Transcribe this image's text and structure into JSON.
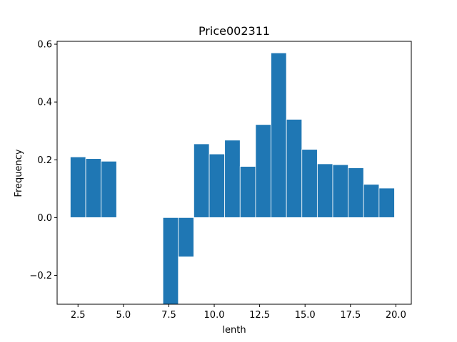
{
  "chart_data": {
    "type": "bar",
    "title": "Price002311",
    "xlabel": "lenth",
    "ylabel": "Frequency",
    "xlim": [
      1.35,
      20.85
    ],
    "ylim": [
      -0.3,
      0.61
    ],
    "bar_color": "#1f77b4",
    "bar_width": 0.85,
    "x": [
      2.5,
      3.35,
      4.2,
      7.6,
      8.45,
      9.3,
      10.15,
      11.0,
      11.85,
      12.7,
      13.55,
      14.4,
      15.25,
      16.1,
      16.95,
      17.8,
      18.65,
      19.5
    ],
    "values": [
      0.21,
      0.204,
      0.195,
      -0.3,
      -0.136,
      0.255,
      0.22,
      0.268,
      0.177,
      0.322,
      0.57,
      0.34,
      0.236,
      0.186,
      0.183,
      0.172,
      0.115,
      0.102
    ],
    "x_ticks": [
      2.5,
      5.0,
      7.5,
      10.0,
      12.5,
      15.0,
      17.5,
      20.0
    ],
    "x_tick_labels": [
      "2.5",
      "5.0",
      "7.5",
      "10.0",
      "12.5",
      "15.0",
      "17.5",
      "20.0"
    ],
    "y_ticks": [
      -0.2,
      0.0,
      0.2,
      0.4,
      0.6
    ],
    "y_tick_labels": [
      "−0.2",
      "0.0",
      "0.2",
      "0.4",
      "0.6"
    ],
    "grid": false,
    "legend": "none"
  }
}
